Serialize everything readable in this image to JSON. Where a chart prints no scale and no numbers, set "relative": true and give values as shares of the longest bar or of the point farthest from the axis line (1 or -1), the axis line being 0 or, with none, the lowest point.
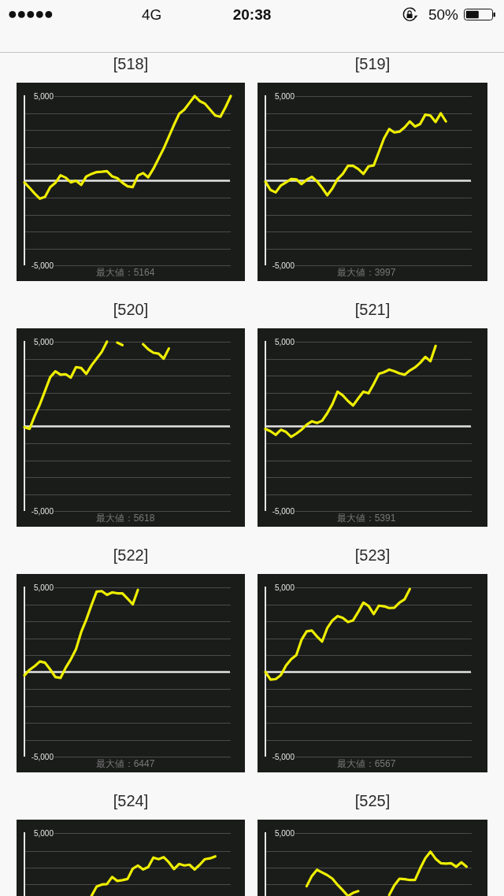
{
  "chart_data": [
    {
      "type": "other",
      "annotations": [
        "4G",
        "20:38",
        "50%"
      ]
    },
    {
      "type": "line",
      "title": "[518]",
      "categories": [
        null,
        null,
        null,
        null,
        null,
        null,
        null,
        null,
        null,
        null,
        null,
        null,
        null,
        null,
        null,
        null,
        null,
        null,
        null,
        null,
        null,
        null,
        null,
        null,
        null,
        null,
        null,
        null,
        null,
        null,
        null,
        null,
        null,
        null,
        null,
        null,
        null,
        null,
        null,
        null,
        null
      ],
      "values": [
        -100,
        -420,
        -760,
        -1060,
        -950,
        -380,
        -130,
        320,
        180,
        -100,
        0,
        -250,
        250,
        400,
        510,
        530,
        560,
        260,
        150,
        -120,
        -330,
        -380,
        300,
        450,
        200,
        700,
        1300,
        1900,
        2600,
        3300,
        3950,
        4200,
        4600,
        5000,
        4700,
        4550,
        4200,
        3850,
        3780,
        4350,
        5000
      ],
      "color": "#eeee00",
      "ylim": [
        -5000,
        5000
      ],
      "yticks": [
        {
          "value": 5000,
          "label": "5,000"
        },
        {
          "value": 4000,
          "label": null
        },
        {
          "value": 3000,
          "label": null
        },
        {
          "value": 2000,
          "label": null
        },
        {
          "value": 1000,
          "label": null
        },
        {
          "value": 0,
          "label": null
        },
        {
          "value": -1000,
          "label": null
        },
        {
          "value": -2000,
          "label": null
        },
        {
          "value": -3000,
          "label": null
        },
        {
          "value": -4000,
          "label": null
        },
        {
          "value": -5000,
          "label": "-5,000"
        }
      ],
      "grid": "y",
      "ref_lines": [
        {
          "axis": "y",
          "value": 0,
          "color": "#e0e0e0"
        }
      ],
      "annotations": [
        "最大値：5164"
      ]
    },
    {
      "type": "line",
      "title": "[519]",
      "categories": [
        null,
        null,
        null,
        null,
        null,
        null,
        null,
        null,
        null,
        null,
        null,
        null,
        null,
        null,
        null,
        null,
        null,
        null,
        null,
        null,
        null,
        null,
        null,
        null,
        null,
        null,
        null,
        null,
        null,
        null,
        null,
        null,
        null,
        null,
        null,
        null,
        null,
        null,
        null,
        null,
        null
      ],
      "values": [
        -50,
        -550,
        -690,
        -280,
        -100,
        100,
        80,
        -200,
        50,
        230,
        -40,
        -420,
        -860,
        -450,
        100,
        400,
        880,
        880,
        690,
        400,
        850,
        900,
        1700,
        2500,
        3050,
        2850,
        2900,
        3150,
        3500,
        3200,
        3350,
        3900,
        3850,
        3470,
        3980,
        3500,
        null,
        null,
        null,
        null,
        null
      ],
      "color": "#eeee00",
      "ylim": [
        -5000,
        5000
      ],
      "yticks": [
        {
          "value": 5000,
          "label": "5,000"
        },
        {
          "value": 4000,
          "label": null
        },
        {
          "value": 3000,
          "label": null
        },
        {
          "value": 2000,
          "label": null
        },
        {
          "value": 1000,
          "label": null
        },
        {
          "value": 0,
          "label": null
        },
        {
          "value": -1000,
          "label": null
        },
        {
          "value": -2000,
          "label": null
        },
        {
          "value": -3000,
          "label": null
        },
        {
          "value": -4000,
          "label": null
        },
        {
          "value": -5000,
          "label": "-5,000"
        }
      ],
      "grid": "y",
      "ref_lines": [
        {
          "axis": "y",
          "value": 0,
          "color": "#e0e0e0"
        }
      ],
      "annotations": [
        "最大値：3997"
      ]
    },
    {
      "type": "line",
      "title": "[520]",
      "categories": [
        null,
        null,
        null,
        null,
        null,
        null,
        null,
        null,
        null,
        null,
        null,
        null,
        null,
        null,
        null,
        null,
        null,
        null,
        null,
        null,
        null,
        null,
        null,
        null,
        null,
        null,
        null,
        null,
        null,
        null,
        null,
        null,
        null,
        null,
        null,
        null,
        null,
        null,
        null,
        null,
        null
      ],
      "values": [
        -50,
        -150,
        620,
        1300,
        2100,
        2900,
        3250,
        3050,
        3080,
        2880,
        3500,
        3450,
        3100,
        3600,
        4000,
        4400,
        5000,
        null,
        4950,
        4800,
        null,
        null,
        null,
        4850,
        4550,
        4350,
        4300,
        4000,
        4600,
        null,
        null,
        null,
        null,
        null,
        null,
        null,
        null,
        null,
        null,
        null,
        null
      ],
      "color": "#eeee00",
      "ylim": [
        -5000,
        5000
      ],
      "yticks": [
        {
          "value": 5000,
          "label": "5,000"
        },
        {
          "value": 4000,
          "label": null
        },
        {
          "value": 3000,
          "label": null
        },
        {
          "value": 2000,
          "label": null
        },
        {
          "value": 1000,
          "label": null
        },
        {
          "value": 0,
          "label": null
        },
        {
          "value": -1000,
          "label": null
        },
        {
          "value": -2000,
          "label": null
        },
        {
          "value": -3000,
          "label": null
        },
        {
          "value": -4000,
          "label": null
        },
        {
          "value": -5000,
          "label": "-5,000"
        }
      ],
      "grid": "y",
      "ref_lines": [
        {
          "axis": "y",
          "value": 0,
          "color": "#e0e0e0"
        }
      ],
      "annotations": [
        "最大値：5618"
      ]
    },
    {
      "type": "line",
      "title": "[521]",
      "categories": [
        null,
        null,
        null,
        null,
        null,
        null,
        null,
        null,
        null,
        null,
        null,
        null,
        null,
        null,
        null,
        null,
        null,
        null,
        null,
        null,
        null,
        null,
        null,
        null,
        null,
        null,
        null,
        null,
        null,
        null,
        null,
        null,
        null,
        null,
        null,
        null,
        null,
        null,
        null,
        null,
        null
      ],
      "values": [
        -150,
        -290,
        -500,
        -200,
        -330,
        -620,
        -430,
        -200,
        100,
        300,
        200,
        330,
        780,
        1320,
        2050,
        1830,
        1500,
        1230,
        1650,
        2050,
        1950,
        2500,
        3100,
        3200,
        3350,
        3260,
        3130,
        3050,
        3300,
        3480,
        3750,
        4100,
        3850,
        4750,
        null,
        null,
        null,
        null,
        null,
        null,
        null
      ],
      "color": "#eeee00",
      "ylim": [
        -5000,
        5000
      ],
      "yticks": [
        {
          "value": 5000,
          "label": "5,000"
        },
        {
          "value": 4000,
          "label": null
        },
        {
          "value": 3000,
          "label": null
        },
        {
          "value": 2000,
          "label": null
        },
        {
          "value": 1000,
          "label": null
        },
        {
          "value": 0,
          "label": null
        },
        {
          "value": -1000,
          "label": null
        },
        {
          "value": -2000,
          "label": null
        },
        {
          "value": -3000,
          "label": null
        },
        {
          "value": -4000,
          "label": null
        },
        {
          "value": -5000,
          "label": "-5,000"
        }
      ],
      "grid": "y",
      "ref_lines": [
        {
          "axis": "y",
          "value": 0,
          "color": "#e0e0e0"
        }
      ],
      "annotations": [
        "最大値：5391"
      ]
    },
    {
      "type": "line",
      "title": "[522]",
      "categories": [
        null,
        null,
        null,
        null,
        null,
        null,
        null,
        null,
        null,
        null,
        null,
        null,
        null,
        null,
        null,
        null,
        null,
        null,
        null,
        null,
        null,
        null,
        null,
        null,
        null,
        null,
        null,
        null,
        null,
        null,
        null,
        null,
        null,
        null,
        null,
        null,
        null,
        null,
        null,
        null,
        null
      ],
      "values": [
        -200,
        130,
        350,
        620,
        550,
        150,
        -300,
        -350,
        250,
        750,
        1350,
        2350,
        3100,
        3950,
        4750,
        4780,
        4560,
        4700,
        4650,
        4650,
        4330,
        4000,
        4850,
        null,
        null,
        null,
        null,
        null,
        null,
        null,
        null,
        null,
        null,
        null,
        null,
        null,
        null,
        null,
        null,
        null,
        null
      ],
      "color": "#eeee00",
      "ylim": [
        -5000,
        5000
      ],
      "yticks": [
        {
          "value": 5000,
          "label": "5,000"
        },
        {
          "value": 4000,
          "label": null
        },
        {
          "value": 3000,
          "label": null
        },
        {
          "value": 2000,
          "label": null
        },
        {
          "value": 1000,
          "label": null
        },
        {
          "value": 0,
          "label": null
        },
        {
          "value": -1000,
          "label": null
        },
        {
          "value": -2000,
          "label": null
        },
        {
          "value": -3000,
          "label": null
        },
        {
          "value": -4000,
          "label": null
        },
        {
          "value": -5000,
          "label": "-5,000"
        }
      ],
      "grid": "y",
      "ref_lines": [
        {
          "axis": "y",
          "value": 0,
          "color": "#e0e0e0"
        }
      ],
      "annotations": [
        "最大値：6447"
      ]
    },
    {
      "type": "line",
      "title": "[523]",
      "categories": [
        null,
        null,
        null,
        null,
        null,
        null,
        null,
        null,
        null,
        null,
        null,
        null,
        null,
        null,
        null,
        null,
        null,
        null,
        null,
        null,
        null,
        null,
        null,
        null,
        null,
        null,
        null,
        null,
        null,
        null,
        null,
        null,
        null,
        null,
        null,
        null,
        null,
        null,
        null,
        null,
        null
      ],
      "values": [
        0,
        -450,
        -420,
        -190,
        380,
        760,
        1000,
        1900,
        2400,
        2450,
        2100,
        1800,
        2600,
        3050,
        3300,
        3200,
        2950,
        3050,
        3550,
        4100,
        3900,
        3420,
        3920,
        3880,
        3780,
        3800,
        4100,
        4300,
        4900,
        null,
        null,
        null,
        null,
        null,
        null,
        null,
        null,
        null,
        null,
        null,
        null
      ],
      "color": "#eeee00",
      "ylim": [
        -5000,
        5000
      ],
      "yticks": [
        {
          "value": 5000,
          "label": "5,000"
        },
        {
          "value": 4000,
          "label": null
        },
        {
          "value": 3000,
          "label": null
        },
        {
          "value": 2000,
          "label": null
        },
        {
          "value": 1000,
          "label": null
        },
        {
          "value": 0,
          "label": null
        },
        {
          "value": -1000,
          "label": null
        },
        {
          "value": -2000,
          "label": null
        },
        {
          "value": -3000,
          "label": null
        },
        {
          "value": -4000,
          "label": null
        },
        {
          "value": -5000,
          "label": "-5,000"
        }
      ],
      "grid": "y",
      "ref_lines": [
        {
          "axis": "y",
          "value": 0,
          "color": "#e0e0e0"
        }
      ],
      "annotations": [
        "最大値：6567"
      ]
    },
    {
      "type": "line",
      "title": "[524]",
      "categories": [
        null,
        null,
        null,
        null,
        null,
        null,
        null,
        null,
        null,
        null,
        null,
        null,
        null,
        null,
        null,
        null,
        null,
        null,
        null,
        null,
        null,
        null,
        null,
        null,
        null,
        null,
        null,
        null,
        null,
        null,
        null,
        null,
        null,
        null,
        null,
        null,
        null,
        null,
        null,
        null,
        null
      ],
      "values": [
        null,
        null,
        null,
        null,
        null,
        null,
        null,
        null,
        null,
        null,
        null,
        null,
        null,
        0,
        0.24,
        0.29,
        0.3,
        0.48,
        0.38,
        0.4,
        0.43,
        0.69,
        0.77,
        0.67,
        0.73,
        0.97,
        0.93,
        0.98,
        0.85,
        0.68,
        0.81,
        0.77,
        0.79,
        0.67,
        0.79,
        0.93,
        0.95,
        1,
        null,
        null,
        null
      ],
      "color": "#eeee00",
      "relative": true,
      "ref_lines": [
        {
          "axis": "y",
          "value": 0.29,
          "color": "#4a4a4a"
        },
        {
          "axis": "y",
          "value": 0.72,
          "color": "#4a4a4a"
        },
        {
          "axis": "y",
          "value": 1.14,
          "color": "#4a4a4a"
        },
        {
          "axis": "y",
          "value": 1.59,
          "color": "#4a4a4a"
        }
      ],
      "annotations": [
        "5,000"
      ]
    },
    {
      "type": "line",
      "title": "[525]",
      "categories": [
        null,
        null,
        null,
        null,
        null,
        null,
        null,
        null,
        null,
        null,
        null,
        null,
        null,
        null,
        null,
        null,
        null,
        null,
        null,
        null,
        null,
        null,
        null,
        null,
        null,
        null,
        null,
        null,
        null,
        null,
        null,
        null,
        null,
        null,
        null,
        null,
        null,
        null,
        null,
        null,
        null
      ],
      "values": [
        null,
        null,
        null,
        null,
        null,
        null,
        null,
        null,
        0.22,
        0.45,
        0.59,
        0.53,
        0.47,
        0.39,
        0.25,
        0.13,
        0,
        0.07,
        0.11,
        null,
        null,
        null,
        null,
        null,
        0.02,
        0.24,
        0.39,
        0.38,
        0.36,
        0.36,
        0.62,
        0.85,
        1,
        0.84,
        0.74,
        0.73,
        0.74,
        0.66,
        0.76,
        0.66,
        null
      ],
      "color": "#eeee00",
      "relative": true,
      "ref_lines": [
        {
          "axis": "y",
          "value": 0.26,
          "color": "#4a4a4a"
        },
        {
          "axis": "y",
          "value": 0.64,
          "color": "#4a4a4a"
        },
        {
          "axis": "y",
          "value": 1.02,
          "color": "#4a4a4a"
        },
        {
          "axis": "y",
          "value": 1.42,
          "color": "#4a4a4a"
        }
      ],
      "annotations": [
        "5,000"
      ]
    }
  ]
}
